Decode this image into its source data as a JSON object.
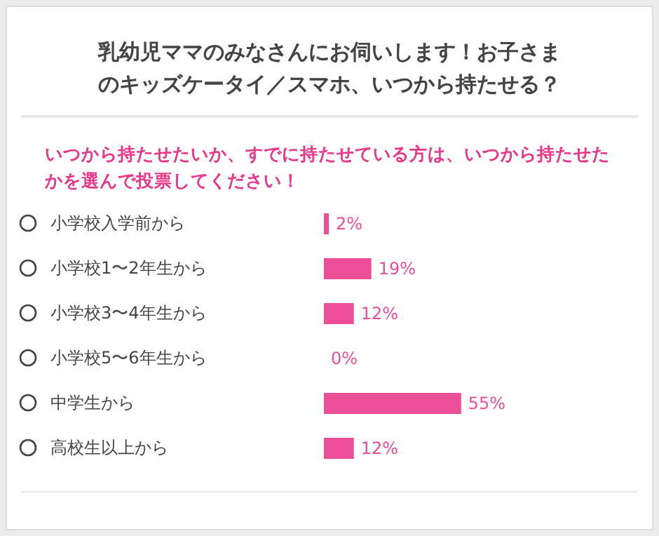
{
  "chart_data": {
    "type": "bar",
    "orientation": "horizontal",
    "title": "乳幼児ママのみなさんにお伺いします！お子さまのキッズケータイ／スマホ、いつから持たせる？",
    "subtitle": "いつから持たせたいか、すでに持たせている方は、いつから持たせたかを選んで投票してください！",
    "categories": [
      "小学校入学前から",
      "小学校1〜2年生から",
      "小学校3〜4年生から",
      "小学校5〜6年生から",
      "中学生から",
      "高校生以上から"
    ],
    "values": [
      2,
      19,
      12,
      0,
      55,
      12
    ],
    "value_labels": [
      "2%",
      "19%",
      "12%",
      "0%",
      "55%",
      "12%"
    ],
    "color": "#ec4f98"
  }
}
